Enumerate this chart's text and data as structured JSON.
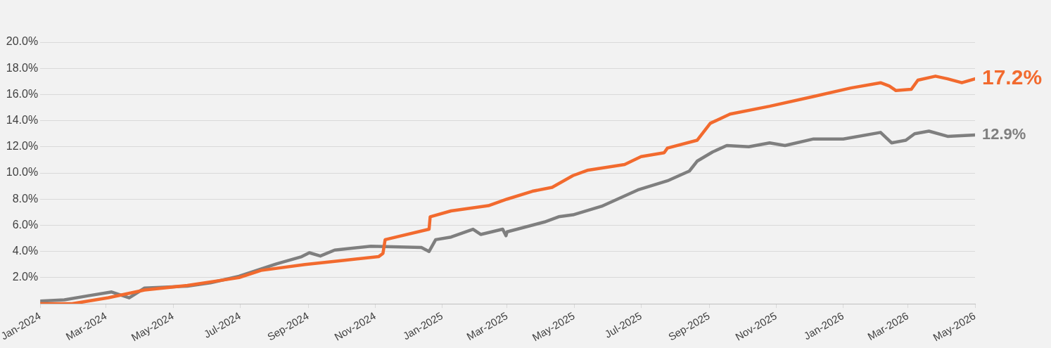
{
  "chart_data": {
    "type": "line",
    "xlim": [
      "2024-01-01",
      "2026-05-01"
    ],
    "xticks": [
      {
        "value": "2024-01-01",
        "label": "Jan-2024"
      },
      {
        "value": "2024-03-01",
        "label": "Mar-2024"
      },
      {
        "value": "2024-05-01",
        "label": "May-2024"
      },
      {
        "value": "2024-07-01",
        "label": "Jul-2024"
      },
      {
        "value": "2024-09-01",
        "label": "Sep-2024"
      },
      {
        "value": "2024-11-01",
        "label": "Nov-2024"
      },
      {
        "value": "2025-01-01",
        "label": "Jan-2025"
      },
      {
        "value": "2025-03-01",
        "label": "Mar-2025"
      },
      {
        "value": "2025-05-01",
        "label": "May-2025"
      },
      {
        "value": "2025-07-01",
        "label": "Jul-2025"
      },
      {
        "value": "2025-09-01",
        "label": "Sep-2025"
      },
      {
        "value": "2025-11-01",
        "label": "Nov-2025"
      },
      {
        "value": "2026-01-01",
        "label": "Jan-2026"
      },
      {
        "value": "2026-03-01",
        "label": "Mar-2026"
      },
      {
        "value": "2026-05-01",
        "label": "May-2026"
      }
    ],
    "ylim": [
      0,
      20
    ],
    "yticks": [
      {
        "value": 2,
        "label": "2.0%"
      },
      {
        "value": 4,
        "label": "4.0%"
      },
      {
        "value": 6,
        "label": "6.0%"
      },
      {
        "value": 8,
        "label": "8.0%"
      },
      {
        "value": 10,
        "label": "10.0%"
      },
      {
        "value": 12,
        "label": "12.0%"
      },
      {
        "value": 14,
        "label": "14.0%"
      },
      {
        "value": 16,
        "label": "16.0%"
      },
      {
        "value": 18,
        "label": "18.0%"
      },
      {
        "value": 20,
        "label": "20.0%"
      }
    ],
    "grid": "y",
    "marker": "none",
    "line_style": "solid",
    "series": [
      {
        "color": "#f26a2e",
        "x": [
          "2024-01-01",
          "2024-01-30",
          "2024-03-03",
          "2024-04-05",
          "2024-05-14",
          "2024-06-30",
          "2024-07-20",
          "2024-08-29",
          "2024-10-01",
          "2024-11-04",
          "2024-11-08",
          "2024-11-10",
          "2024-12-20",
          "2024-12-21",
          "2025-01-09",
          "2025-02-12",
          "2025-03-01",
          "2025-03-24",
          "2025-04-11",
          "2025-04-30",
          "2025-05-13",
          "2025-06-16",
          "2025-07-01",
          "2025-07-22",
          "2025-07-25",
          "2025-08-21",
          "2025-09-02",
          "2025-09-20",
          "2025-10-26",
          "2025-12-05",
          "2026-01-08",
          "2026-02-04",
          "2026-02-12",
          "2026-02-18",
          "2026-03-04",
          "2026-03-10",
          "2026-03-26",
          "2026-04-06",
          "2026-04-19",
          "2026-05-01"
        ],
        "values": [
          0,
          0,
          0.46,
          1.05,
          1.4,
          2.0,
          2.55,
          3.0,
          3.3,
          3.6,
          3.85,
          4.9,
          5.7,
          6.65,
          7.1,
          7.5,
          8.0,
          8.6,
          8.9,
          9.8,
          10.2,
          10.65,
          11.25,
          11.55,
          11.9,
          12.5,
          13.8,
          14.5,
          15.1,
          15.85,
          16.5,
          16.9,
          16.65,
          16.3,
          16.4,
          17.1,
          17.4,
          17.2,
          16.9,
          17.2
        ]
      },
      {
        "color": "#7f7f7f",
        "x": [
          "2024-01-01",
          "2024-01-23",
          "2024-02-13",
          "2024-03-06",
          "2024-03-22",
          "2024-04-05",
          "2024-05-14",
          "2024-06-04",
          "2024-06-30",
          "2024-08-03",
          "2024-08-26",
          "2024-09-02",
          "2024-09-12",
          "2024-09-25",
          "2024-10-28",
          "2024-12-13",
          "2024-12-20",
          "2024-12-26",
          "2025-01-09",
          "2025-01-29",
          "2025-02-05",
          "2025-02-25",
          "2025-02-28",
          "2025-03-01",
          "2025-04-04",
          "2025-04-17",
          "2025-04-30",
          "2025-05-26",
          "2025-06-28",
          "2025-07-25",
          "2025-08-14",
          "2025-08-21",
          "2025-09-04",
          "2025-09-17",
          "2025-10-07",
          "2025-10-26",
          "2025-11-09",
          "2025-12-05",
          "2026-01-01",
          "2026-02-04",
          "2026-02-14",
          "2026-02-27",
          "2026-03-07",
          "2026-03-20",
          "2026-04-06",
          "2026-05-01"
        ],
        "values": [
          0.2,
          0.3,
          0.6,
          0.9,
          0.45,
          1.2,
          1.35,
          1.6,
          2.1,
          3.05,
          3.6,
          3.9,
          3.65,
          4.1,
          4.4,
          4.3,
          4.0,
          4.9,
          5.1,
          5.7,
          5.3,
          5.7,
          5.2,
          5.5,
          6.25,
          6.65,
          6.8,
          7.45,
          8.7,
          9.4,
          10.15,
          10.9,
          11.6,
          12.1,
          12.0,
          12.3,
          12.1,
          12.6,
          12.6,
          13.1,
          12.3,
          12.5,
          13.0,
          13.2,
          12.8,
          12.9
        ]
      }
    ],
    "annotations": [
      {
        "text": "17.2%",
        "x": "2026-05-01",
        "y": 17.2
      },
      {
        "text": "12.9%",
        "x": "2026-05-01",
        "y": 12.9
      }
    ]
  }
}
